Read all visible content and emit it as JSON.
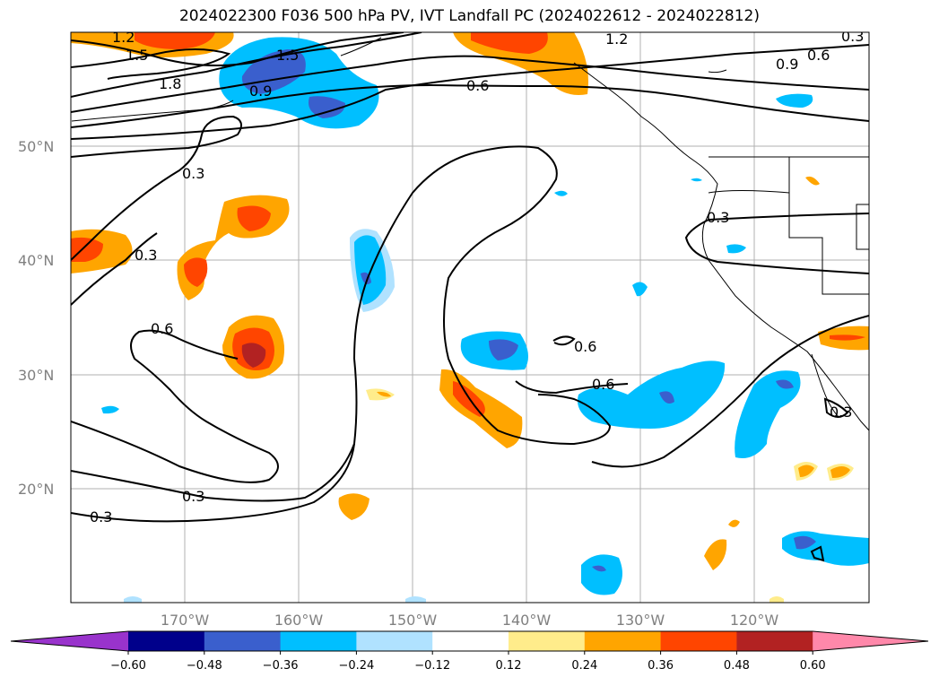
{
  "title": "2024022300 F036 500 hPa PV, IVT Landfall PC (2024022612 - 2024022812)",
  "lat_labels": [
    "50°N",
    "40°N",
    "30°N",
    "20°N"
  ],
  "lon_labels": [
    "170°W",
    "160°W",
    "150°W",
    "140°W",
    "130°W",
    "120°W"
  ],
  "contour_labels": [
    "1.2",
    "1.5",
    "1.8",
    "1.5",
    "0.9",
    "1.2",
    "0.6",
    "0.9",
    "0.6",
    "0.3",
    "0.3",
    "0.3",
    "0.6",
    "0.6",
    "0.6",
    "0.3",
    "0.3",
    "0.3",
    "0.3"
  ],
  "colorbar": {
    "ticks": [
      "−0.60",
      "−0.48",
      "−0.36",
      "−0.24",
      "−0.12",
      "0.12",
      "0.24",
      "0.36",
      "0.48",
      "0.60"
    ],
    "colors": [
      "#9933cc",
      "#00008b",
      "#3a5fcd",
      "#00bfff",
      "#b0e2ff",
      "#ffffff",
      "#ffec8b",
      "#ffa500",
      "#ff4500",
      "#b22222",
      "#ff88aa"
    ]
  },
  "palette": {
    "neg_strong": "#3a5fcd",
    "neg_mid": "#00bfff",
    "neg_light": "#b0e2ff",
    "pos_light": "#ffec8b",
    "pos_mid": "#ffa500",
    "pos_strong": "#ff4500",
    "pos_darkest": "#b22222"
  }
}
